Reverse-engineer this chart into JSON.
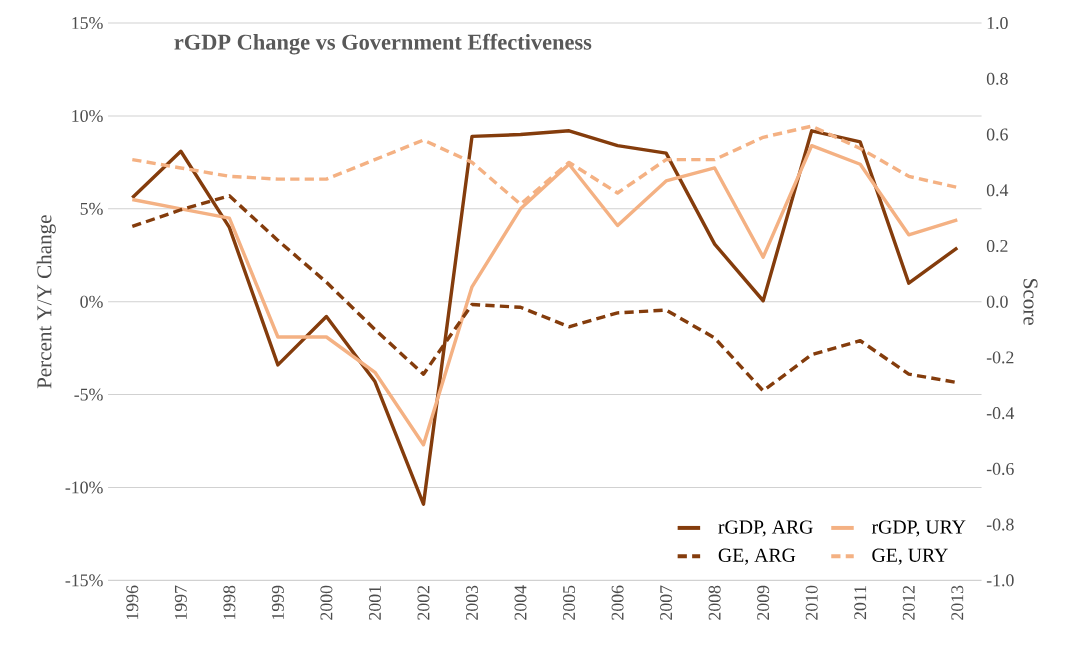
{
  "chart_data": {
    "type": "line",
    "title": "rGDP Change vs Government Effectiveness",
    "ylabel": "Percent Y/Y Change",
    "y2label": "Score",
    "categories": [
      "1996",
      "1997",
      "1998",
      "1999",
      "2000",
      "2001",
      "2002",
      "2003",
      "2004",
      "2005",
      "2006",
      "2007",
      "2008",
      "2009",
      "2010",
      "2011",
      "2012",
      "2013"
    ],
    "series": [
      {
        "name": "rGDP, ARG",
        "color": "#843c0c",
        "line_style": "solid",
        "values": [
          5.6,
          8.1,
          4.0,
          -3.4,
          -0.8,
          -4.3,
          -10.9,
          8.9,
          9.0,
          9.2,
          8.4,
          8.0,
          3.1,
          0.05,
          9.2,
          8.6,
          1.0,
          2.9
        ]
      },
      {
        "name": "rGDP, URY",
        "color": "#f4b183",
        "line_style": "solid",
        "values": [
          5.5,
          5.0,
          4.5,
          -1.9,
          -1.9,
          -3.8,
          -7.7,
          0.8,
          5.0,
          7.4,
          4.1,
          6.5,
          7.2,
          2.4,
          8.4,
          7.4,
          3.6,
          4.4
        ]
      },
      {
        "name": "GE, ARG",
        "color": "#843c0c",
        "line_style": "dashed",
        "axis": "y2",
        "values": [
          0.27,
          0.33,
          0.38,
          0.22,
          0.07,
          -0.1,
          -0.26,
          -0.01,
          -0.02,
          -0.09,
          -0.04,
          -0.03,
          -0.13,
          -0.32,
          -0.19,
          -0.14,
          -0.26,
          -0.29
        ]
      },
      {
        "name": "GE, URY",
        "color": "#f4b183",
        "line_style": "dashed",
        "axis": "y2",
        "values": [
          0.51,
          0.48,
          0.45,
          0.44,
          0.44,
          0.51,
          0.58,
          0.5,
          0.35,
          0.5,
          0.39,
          0.51,
          0.51,
          0.59,
          0.63,
          0.55,
          0.45,
          0.41
        ]
      }
    ],
    "ylim": [
      -15,
      15
    ],
    "yticks": [
      {
        "value": -15,
        "label": "-15%"
      },
      {
        "value": -10,
        "label": "-10%"
      },
      {
        "value": -5,
        "label": "-5%"
      },
      {
        "value": 0,
        "label": "0%"
      },
      {
        "value": 5,
        "label": "5%"
      },
      {
        "value": 10,
        "label": "10%"
      },
      {
        "value": 15,
        "label": "15%"
      }
    ],
    "y2lim": [
      -1.0,
      1.0
    ],
    "y2ticks": [
      {
        "value": -1.0,
        "label": "-1.0"
      },
      {
        "value": -0.8,
        "label": "-0.8"
      },
      {
        "value": -0.6,
        "label": "-0.6"
      },
      {
        "value": -0.4,
        "label": "-0.4"
      },
      {
        "value": -0.2,
        "label": "-0.2"
      },
      {
        "value": 0,
        "label": "0.0"
      },
      {
        "value": 0.2,
        "label": "0.2"
      },
      {
        "value": 0.4,
        "label": "0.4"
      },
      {
        "value": 0.6,
        "label": "0.6"
      },
      {
        "value": 0.8,
        "label": "0.8"
      },
      {
        "value": 1.0,
        "label": "1.0"
      }
    ],
    "grid": "y",
    "legend": "bottom right",
    "marker": "none"
  }
}
